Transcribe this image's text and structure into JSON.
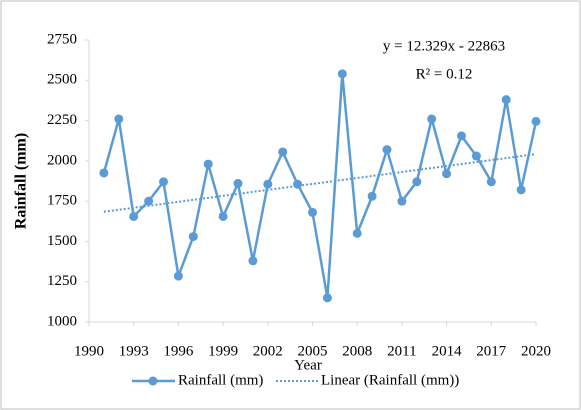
{
  "chart_data": {
    "type": "line",
    "y_label": "Rainfall (mm)",
    "x_label": "Year",
    "x": [
      1991,
      1992,
      1993,
      1994,
      1995,
      1996,
      1997,
      1998,
      1999,
      2000,
      2001,
      2002,
      2003,
      2004,
      2005,
      2006,
      2007,
      2008,
      2009,
      2010,
      2011,
      2012,
      2013,
      2014,
      2015,
      2016,
      2017,
      2018,
      2019,
      2020
    ],
    "series": [
      {
        "name": "Rainfall (mm)",
        "color": "#5b9bd5",
        "values": [
          1925,
          2260,
          1655,
          1750,
          1870,
          1285,
          1530,
          1980,
          1655,
          1860,
          1380,
          1855,
          2055,
          1855,
          1680,
          1150,
          2540,
          1550,
          1780,
          2070,
          1750,
          1870,
          2260,
          1920,
          2155,
          2030,
          1870,
          2380,
          1820,
          2245
        ]
      }
    ],
    "trendline": {
      "name": "Linear (Rainfall (mm))",
      "color": "#5b9bd5",
      "x": [
        1991,
        2020
      ],
      "values": [
        1684,
        2042
      ]
    },
    "annotations": [
      "y = 12.329x - 22863",
      "R² = 0.12"
    ],
    "xlim": [
      1990,
      2020
    ],
    "xticks": [
      1990,
      1993,
      1996,
      1999,
      2002,
      2005,
      2008,
      2011,
      2014,
      2017,
      2020
    ],
    "ylim": [
      1000,
      2750
    ],
    "yticks": [
      1000,
      1250,
      1500,
      1750,
      2000,
      2250,
      2500,
      2750
    ],
    "grid": false
  }
}
